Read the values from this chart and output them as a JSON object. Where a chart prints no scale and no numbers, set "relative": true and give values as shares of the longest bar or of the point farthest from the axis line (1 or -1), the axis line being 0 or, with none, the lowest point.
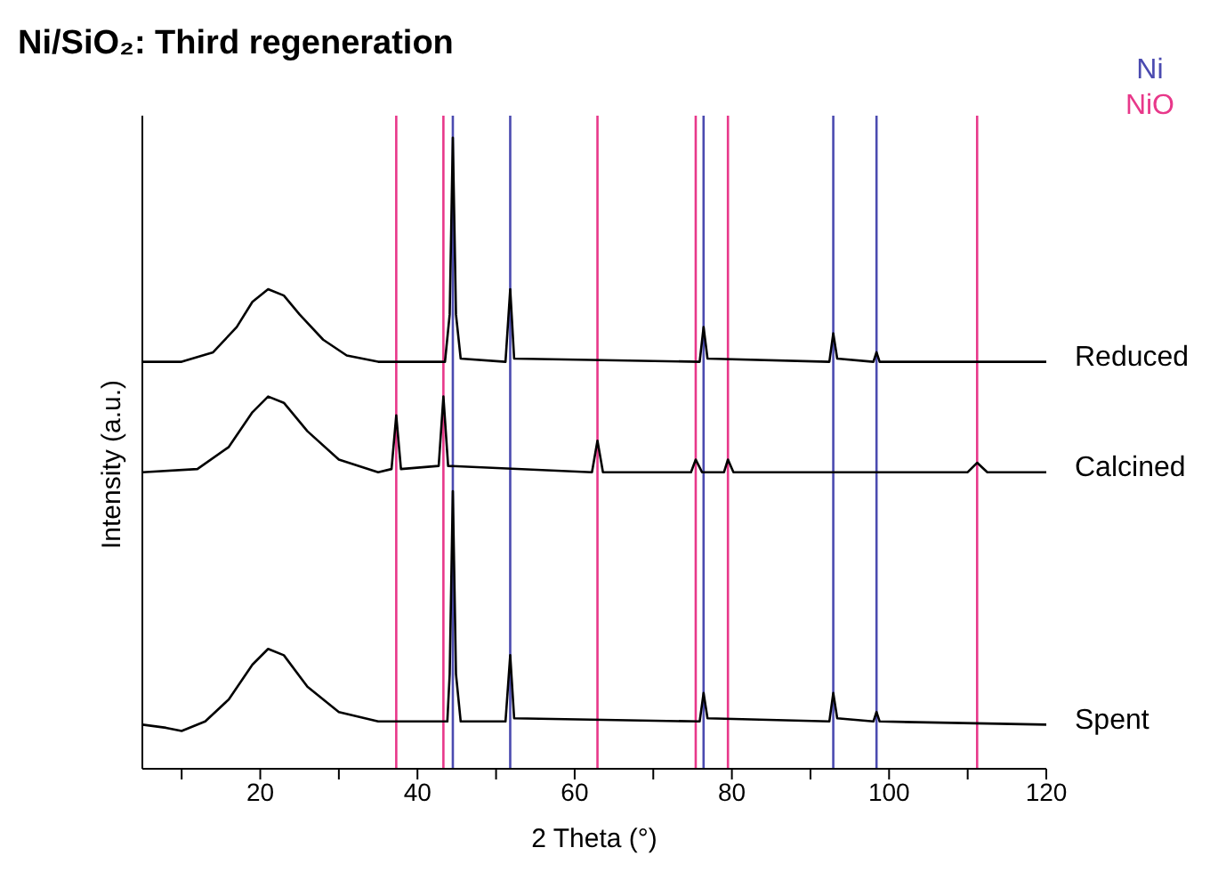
{
  "chart_data": {
    "type": "line",
    "title": "Ni/SiO₂: Third regeneration",
    "xlabel": "2 Theta (°)",
    "ylabel": "Intensity (a.u.)",
    "relative": true,
    "xlim": [
      5,
      120
    ],
    "xticks": [
      {
        "value": 10,
        "label": null
      },
      20,
      {
        "value": 30,
        "label": null
      },
      40,
      {
        "value": 50,
        "label": null
      },
      60,
      {
        "value": 70,
        "label": null
      },
      80,
      {
        "value": 90,
        "label": null
      },
      100,
      {
        "value": 110,
        "label": null
      },
      120
    ],
    "grid": false,
    "legend": false,
    "marker": "none",
    "line_style": "solid",
    "annotations": [
      "Ni",
      "NiO"
    ],
    "ref_lines": [
      {
        "axis": "x",
        "value": 44.5,
        "color": "#4b4bb0"
      },
      {
        "axis": "x",
        "value": 51.8,
        "color": "#4b4bb0"
      },
      {
        "axis": "x",
        "value": 76.4,
        "color": "#4b4bb0"
      },
      {
        "axis": "x",
        "value": 92.9,
        "color": "#4b4bb0"
      },
      {
        "axis": "x",
        "value": 98.4,
        "color": "#4b4bb0"
      },
      {
        "axis": "x",
        "value": 37.3,
        "color": "#e8388a"
      },
      {
        "axis": "x",
        "value": 43.3,
        "color": "#e8388a"
      },
      {
        "axis": "x",
        "value": 62.9,
        "color": "#e8388a"
      },
      {
        "axis": "x",
        "value": 75.4,
        "color": "#e8388a"
      },
      {
        "axis": "x",
        "value": 79.5,
        "color": "#e8388a"
      },
      {
        "axis": "x",
        "value": 111.2,
        "color": "#e8388a"
      }
    ],
    "series": [
      {
        "name": "Reduced",
        "color": "#000000",
        "x": [
          5,
          10,
          14,
          17,
          19,
          21,
          23,
          25,
          28,
          31,
          35,
          43.5,
          44.1,
          44.5,
          44.9,
          45.5,
          51.2,
          51.8,
          52.3,
          75.9,
          76.4,
          76.9,
          92.4,
          92.9,
          93.4,
          98.0,
          98.4,
          98.8,
          120
        ],
        "values": [
          0.645,
          0.645,
          0.66,
          0.7,
          0.74,
          0.76,
          0.75,
          0.72,
          0.68,
          0.655,
          0.645,
          0.645,
          0.72,
          1.0,
          0.72,
          0.65,
          0.645,
          0.76,
          0.65,
          0.645,
          0.7,
          0.65,
          0.645,
          0.69,
          0.65,
          0.645,
          0.66,
          0.645,
          0.645
        ]
      },
      {
        "name": "Calcined",
        "color": "#000000",
        "x": [
          5,
          12,
          16,
          19,
          21,
          23,
          26,
          30,
          35,
          36.7,
          37.3,
          37.9,
          42.7,
          43.3,
          43.9,
          62.2,
          62.9,
          63.6,
          74.8,
          75.4,
          76.2,
          79,
          79.5,
          80.2,
          110,
          111.2,
          112.5,
          120
        ],
        "values": [
          0.47,
          0.475,
          0.51,
          0.565,
          0.59,
          0.58,
          0.535,
          0.49,
          0.47,
          0.475,
          0.56,
          0.475,
          0.48,
          0.59,
          0.48,
          0.47,
          0.52,
          0.47,
          0.47,
          0.49,
          0.47,
          0.47,
          0.49,
          0.47,
          0.47,
          0.485,
          0.47,
          0.47
        ]
      },
      {
        "name": "Spent",
        "color": "#000000",
        "x": [
          5,
          8,
          10,
          13,
          16,
          19,
          21,
          23,
          26,
          30,
          35,
          43.8,
          44.1,
          44.5,
          44.9,
          45.5,
          51.2,
          51.8,
          52.3,
          75.9,
          76.4,
          76.9,
          92.4,
          92.9,
          93.4,
          98.0,
          98.4,
          98.8,
          120
        ],
        "values": [
          0.07,
          0.065,
          0.06,
          0.075,
          0.11,
          0.165,
          0.19,
          0.18,
          0.13,
          0.09,
          0.075,
          0.075,
          0.15,
          0.44,
          0.15,
          0.075,
          0.075,
          0.18,
          0.08,
          0.075,
          0.12,
          0.08,
          0.075,
          0.12,
          0.08,
          0.075,
          0.09,
          0.075,
          0.07
        ]
      }
    ]
  }
}
